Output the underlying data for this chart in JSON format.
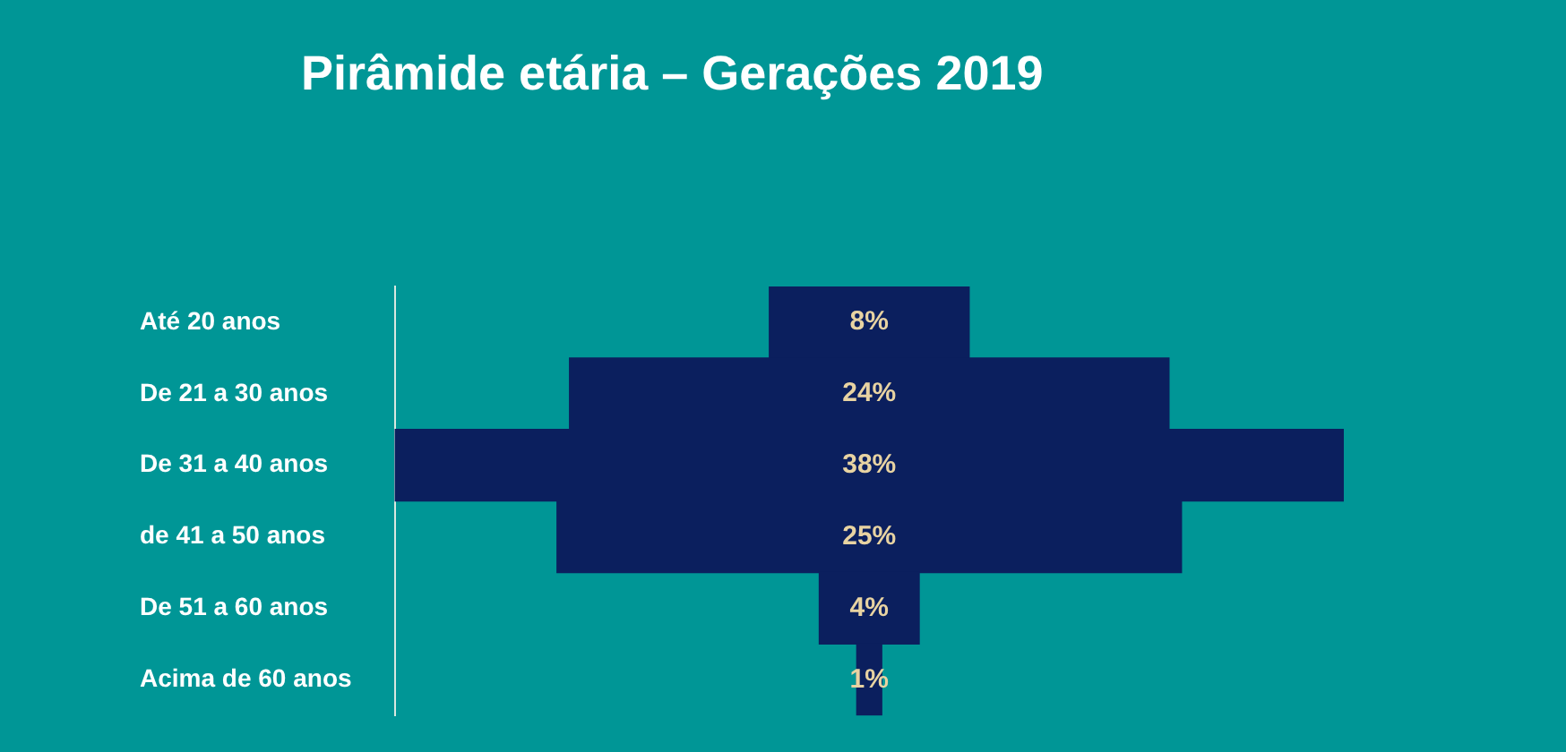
{
  "chart_data": {
    "type": "other",
    "title": "Pirâmide etária – Gerações 2019",
    "categories": [
      "Até 20 anos",
      "De 21 a 30 anos",
      "De 31 a 40 anos",
      "de 41 a 50 anos",
      "De 51 a 60 anos",
      "Acima de 60 anos"
    ],
    "values": [
      8,
      24,
      38,
      25,
      4,
      1
    ],
    "value_labels": [
      "8%",
      "24%",
      "38%",
      "25%",
      "4%",
      "1%"
    ],
    "color": "#0b1f5e",
    "legend": false
  }
}
